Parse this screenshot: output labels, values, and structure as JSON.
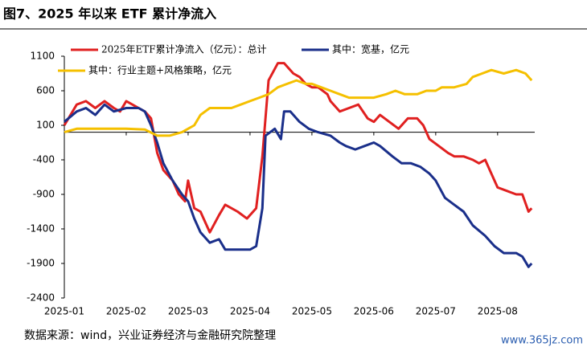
{
  "chart_data": {
    "type": "line",
    "title": "图7、2025 年以来 ETF 累计净流入",
    "source": "数据来源：wind，兴业证券经济与金融研究院整理",
    "watermark": "www.365jz.com",
    "ylim": [
      -2400,
      1100
    ],
    "yticks": [
      1100,
      600,
      100,
      -400,
      -900,
      -1400,
      -1900,
      -2400
    ],
    "xlim": [
      0,
      7.6
    ],
    "xticks": [
      {
        "value": 0,
        "label": "2025-01"
      },
      {
        "value": 1,
        "label": "2025-02"
      },
      {
        "value": 2,
        "label": "2025-03"
      },
      {
        "value": 3,
        "label": "2025-04"
      },
      {
        "value": 4,
        "label": "2025-05"
      },
      {
        "value": 5,
        "label": "2025-06"
      },
      {
        "value": 6,
        "label": "2025-07"
      },
      {
        "value": 7,
        "label": "2025-08"
      }
    ],
    "series": [
      {
        "name": "2025年ETF累计净流入（亿元）：总计",
        "color": "#e02020",
        "x": [
          0,
          0.2,
          0.35,
          0.5,
          0.65,
          0.8,
          0.9,
          1.0,
          1.2,
          1.3,
          1.4,
          1.5,
          1.6,
          1.75,
          1.85,
          1.95,
          2.0,
          2.1,
          2.2,
          2.35,
          2.5,
          2.6,
          2.8,
          2.95,
          3.1,
          3.2,
          3.3,
          3.45,
          3.55,
          3.7,
          3.8,
          3.9,
          4.0,
          4.1,
          4.25,
          4.3,
          4.45,
          4.6,
          4.75,
          4.9,
          5.0,
          5.1,
          5.25,
          5.4,
          5.55,
          5.7,
          5.8,
          5.9,
          6.05,
          6.2,
          6.3,
          6.45,
          6.6,
          6.7,
          6.8,
          6.9,
          7.0,
          7.15,
          7.3,
          7.4,
          7.5,
          7.55
        ],
        "values": [
          100,
          400,
          450,
          350,
          450,
          350,
          300,
          450,
          350,
          300,
          200,
          -300,
          -550,
          -700,
          -900,
          -1000,
          -700,
          -1100,
          -1150,
          -1450,
          -1200,
          -1050,
          -1150,
          -1250,
          -1100,
          -350,
          750,
          1000,
          1000,
          850,
          800,
          700,
          650,
          650,
          550,
          450,
          300,
          350,
          400,
          200,
          150,
          250,
          150,
          50,
          200,
          200,
          100,
          -100,
          -200,
          -300,
          -350,
          -350,
          -400,
          -450,
          -400,
          -600,
          -800,
          -850,
          -900,
          -900,
          -1150,
          -1100
        ]
      },
      {
        "name": "其中：宽基，亿元",
        "color": "#1a2f8a",
        "x": [
          0,
          0.2,
          0.35,
          0.5,
          0.65,
          0.8,
          1.0,
          1.2,
          1.3,
          1.4,
          1.5,
          1.6,
          1.75,
          1.9,
          2.0,
          2.1,
          2.2,
          2.35,
          2.5,
          2.6,
          2.8,
          3.0,
          3.1,
          3.2,
          3.25,
          3.4,
          3.5,
          3.55,
          3.65,
          3.8,
          3.95,
          4.1,
          4.3,
          4.45,
          4.55,
          4.7,
          4.85,
          5.0,
          5.1,
          5.3,
          5.45,
          5.6,
          5.75,
          5.9,
          6.0,
          6.15,
          6.3,
          6.45,
          6.6,
          6.8,
          6.95,
          7.1,
          7.3,
          7.4,
          7.5,
          7.55
        ],
        "values": [
          150,
          300,
          350,
          250,
          400,
          300,
          350,
          350,
          300,
          100,
          -150,
          -450,
          -700,
          -900,
          -1000,
          -1250,
          -1450,
          -1600,
          -1550,
          -1700,
          -1700,
          -1700,
          -1650,
          -1100,
          -50,
          50,
          -100,
          300,
          300,
          150,
          50,
          0,
          -50,
          -150,
          -200,
          -250,
          -200,
          -150,
          -200,
          -350,
          -450,
          -450,
          -500,
          -600,
          -700,
          -950,
          -1050,
          -1150,
          -1350,
          -1500,
          -1650,
          -1750,
          -1750,
          -1800,
          -1950,
          -1900
        ]
      },
      {
        "name": "其中：行业主题+风格策略，亿元",
        "color": "#f5c000",
        "x": [
          0,
          0.2,
          0.5,
          0.8,
          1.0,
          1.3,
          1.5,
          1.7,
          1.9,
          2.0,
          2.1,
          2.2,
          2.35,
          2.5,
          2.7,
          2.85,
          3.0,
          3.15,
          3.3,
          3.45,
          3.6,
          3.75,
          3.9,
          4.0,
          4.15,
          4.3,
          4.45,
          4.6,
          4.8,
          5.0,
          5.2,
          5.35,
          5.5,
          5.7,
          5.85,
          6.0,
          6.1,
          6.3,
          6.5,
          6.6,
          6.75,
          6.9,
          7.1,
          7.3,
          7.45,
          7.55
        ],
        "values": [
          0,
          50,
          50,
          50,
          50,
          40,
          -50,
          -50,
          0,
          50,
          100,
          250,
          350,
          350,
          350,
          400,
          450,
          500,
          550,
          650,
          700,
          750,
          700,
          700,
          650,
          600,
          550,
          500,
          500,
          500,
          550,
          600,
          550,
          550,
          600,
          600,
          650,
          650,
          700,
          800,
          850,
          900,
          850,
          900,
          850,
          750
        ]
      }
    ]
  }
}
